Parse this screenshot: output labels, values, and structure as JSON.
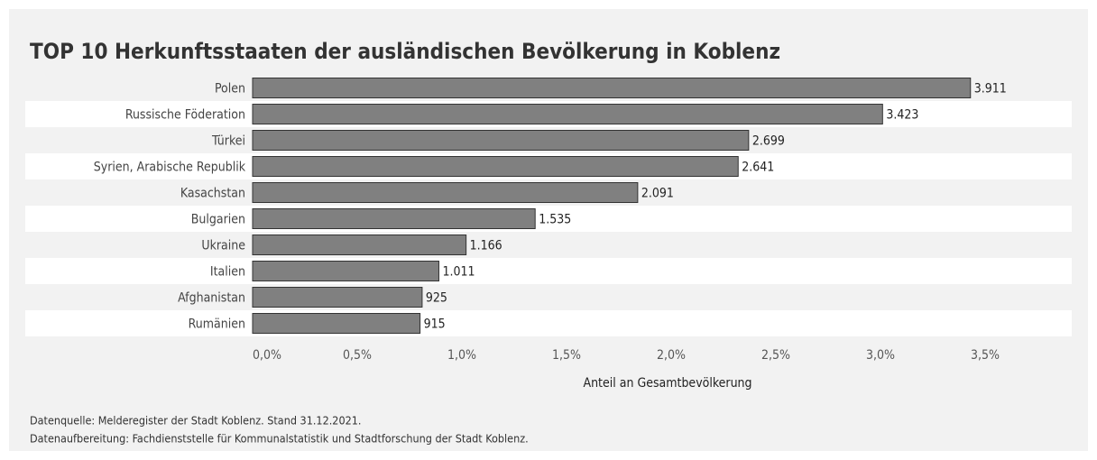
{
  "chart_data": {
    "type": "bar",
    "orientation": "horizontal",
    "title": "TOP 10 Herkunftsstaaten der ausländischen Bevölkerung in Koblenz",
    "categories": [
      "Polen",
      "Russische Föderation",
      "Türkei",
      "Syrien, Arabische Republik",
      "Kasachstan",
      "Bulgarien",
      "Ukraine",
      "Italien",
      "Afghanistan",
      "Rumänien"
    ],
    "values": [
      3.43,
      3.01,
      2.37,
      2.32,
      1.84,
      1.35,
      1.02,
      0.89,
      0.81,
      0.8
    ],
    "count_labels": [
      "3.911",
      "3.423",
      "2.699",
      "2.641",
      "2.091",
      "1.535",
      "1.166",
      "1.011",
      "925",
      "915"
    ],
    "color": "#808080",
    "xlim": [
      0,
      3.5
    ],
    "xticks": [
      {
        "value": 0,
        "label": "0,0%"
      },
      {
        "value": 0.5,
        "label": "0,5%"
      },
      {
        "value": 1,
        "label": "1,0%"
      },
      {
        "value": 1.5,
        "label": "1,5%"
      },
      {
        "value": 2,
        "label": "2,0%"
      },
      {
        "value": 2.5,
        "label": "2,5%"
      },
      {
        "value": 3,
        "label": "3,0%"
      },
      {
        "value": 3.5,
        "label": "3,5%"
      }
    ],
    "xlabel": "Anteil an Gesamtbevölkerung",
    "notes": [
      "Datenquelle: Melderegister der Stadt Koblenz. Stand 31.12.2021.",
      "Datenaufbereitung: Fachdienststelle für Kommunalstatistik und Stadtforschung der Stadt Koblenz."
    ]
  }
}
